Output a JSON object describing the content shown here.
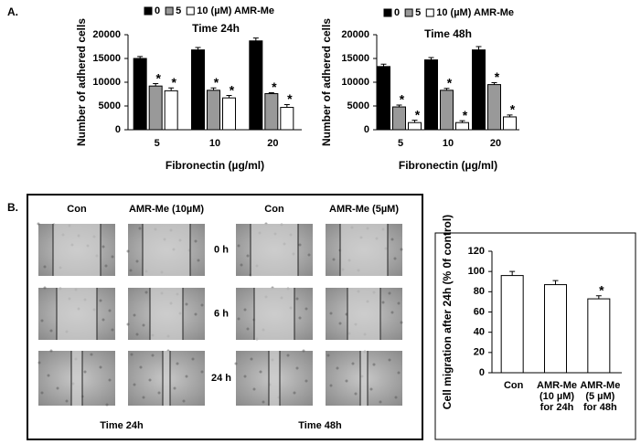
{
  "panel_labels": [
    "A.",
    "B."
  ],
  "micrographs": {
    "columns": [
      "Con",
      "AMR-Me (10µM)",
      "Con",
      "AMR-Me (5µM)"
    ],
    "rows": [
      "0 h",
      "6 h",
      "24 h"
    ],
    "captions": [
      "Time 24h",
      "Time 48h"
    ]
  },
  "chart_data": [
    {
      "type": "bar",
      "title": "Time 24h",
      "y_label": "Number of adhered cells",
      "x_label": "Fibronectin (µg/ml)",
      "categories": [
        "5",
        "10",
        "20"
      ],
      "series": [
        {
          "name": "0",
          "color": "#000000",
          "values": [
            15000,
            16800,
            18700
          ],
          "errors": [
            400,
            500,
            600
          ]
        },
        {
          "name": "5",
          "color": "#999999",
          "values": [
            9200,
            8300,
            7600
          ],
          "errors": [
            500,
            500,
            200
          ],
          "markers": [
            "*",
            "*",
            "*"
          ]
        },
        {
          "name": "10 (µM) AMR-Me",
          "color": "#ffffff",
          "values": [
            8200,
            6700,
            4700
          ],
          "errors": [
            600,
            500,
            600
          ],
          "markers": [
            "*",
            "*",
            "*"
          ]
        }
      ],
      "ylim": [
        0,
        20000
      ],
      "yticks": [
        0,
        5000,
        10000,
        15000,
        20000
      ],
      "legend": "top"
    },
    {
      "type": "bar",
      "title": "Time 48h",
      "y_label": "Number of adhered cells",
      "x_label": "Fibronectin (µg/ml)",
      "categories": [
        "5",
        "10",
        "20"
      ],
      "series": [
        {
          "name": "0",
          "color": "#000000",
          "values": [
            13300,
            14700,
            16800
          ],
          "errors": [
            500,
            500,
            700
          ]
        },
        {
          "name": "5",
          "color": "#999999",
          "values": [
            4800,
            8300,
            9500
          ],
          "errors": [
            400,
            400,
            400
          ],
          "markers": [
            "*",
            "*",
            "*"
          ]
        },
        {
          "name": "10 (µM) AMR-Me",
          "color": "#ffffff",
          "values": [
            1500,
            1500,
            2700
          ],
          "errors": [
            500,
            400,
            400
          ],
          "markers": [
            "*",
            "*",
            "*"
          ]
        }
      ],
      "ylim": [
        0,
        20000
      ],
      "yticks": [
        0,
        5000,
        10000,
        15000,
        20000
      ],
      "legend": "top"
    },
    {
      "type": "bar",
      "y_label": "Cell migration after 24h (% 0f control)",
      "categories": [
        [
          "Con"
        ],
        [
          "AMR-Me",
          "(10 µM)",
          "for 24h"
        ],
        [
          "AMR-Me",
          "(5 µM)",
          "for 48h"
        ]
      ],
      "series": [
        {
          "color": "#ffffff",
          "values": [
            96,
            87,
            73
          ],
          "errors": [
            4,
            4,
            3
          ],
          "markers": [
            null,
            null,
            "*"
          ]
        }
      ],
      "ylim": [
        0,
        120
      ],
      "yticks": [
        0,
        20,
        40,
        60,
        80,
        100,
        120
      ]
    }
  ]
}
